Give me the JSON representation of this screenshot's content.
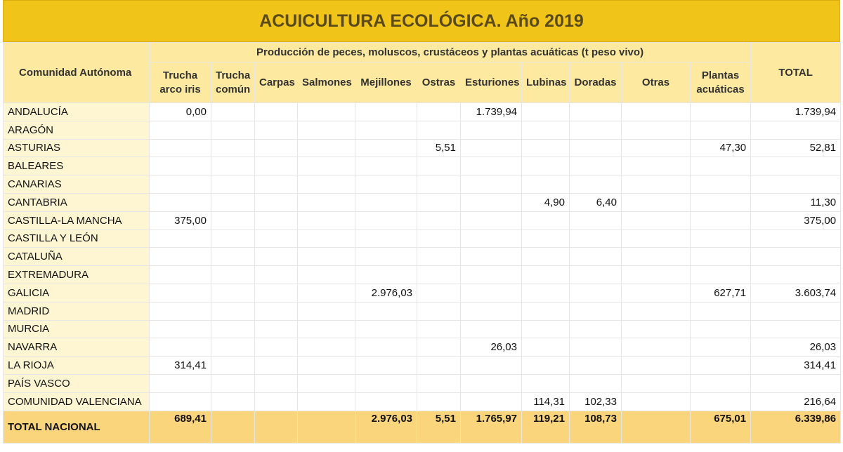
{
  "title": "ACUICULTURA ECOLÓGICA. Año 2019",
  "headers": {
    "region": "Comunidad Autónoma",
    "group": "Producción de peces, moluscos, crustáceos y plantas acuáticas (t peso vivo)",
    "total": "TOTAL",
    "columns": [
      "Trucha arco iris",
      "Trucha común",
      "Carpas",
      "Salmones",
      "Mejillones",
      "Ostras",
      "Esturiones",
      "Lubinas",
      "Doradas",
      "Otras",
      "Plantas acuáticas"
    ]
  },
  "rows": [
    {
      "region": "ANDALUCÍA",
      "values": [
        "0,00",
        "",
        "",
        "",
        "",
        "",
        "1.739,94",
        "",
        "",
        "",
        ""
      ],
      "total": "1.739,94"
    },
    {
      "region": "ARAGÓN",
      "values": [
        "",
        "",
        "",
        "",
        "",
        "",
        "",
        "",
        "",
        "",
        ""
      ],
      "total": ""
    },
    {
      "region": "ASTURIAS",
      "values": [
        "",
        "",
        "",
        "",
        "",
        "5,51",
        "",
        "",
        "",
        "",
        "47,30"
      ],
      "total": "52,81"
    },
    {
      "region": "BALEARES",
      "values": [
        "",
        "",
        "",
        "",
        "",
        "",
        "",
        "",
        "",
        "",
        ""
      ],
      "total": ""
    },
    {
      "region": "CANARIAS",
      "values": [
        "",
        "",
        "",
        "",
        "",
        "",
        "",
        "",
        "",
        "",
        ""
      ],
      "total": ""
    },
    {
      "region": "CANTABRIA",
      "values": [
        "",
        "",
        "",
        "",
        "",
        "",
        "",
        "4,90",
        "6,40",
        "",
        ""
      ],
      "total": "11,30"
    },
    {
      "region": "CASTILLA-LA MANCHA",
      "values": [
        "375,00",
        "",
        "",
        "",
        "",
        "",
        "",
        "",
        "",
        "",
        ""
      ],
      "total": "375,00"
    },
    {
      "region": "CASTILLA Y LEÓN",
      "values": [
        "",
        "",
        "",
        "",
        "",
        "",
        "",
        "",
        "",
        "",
        ""
      ],
      "total": ""
    },
    {
      "region": "CATALUÑA",
      "values": [
        "",
        "",
        "",
        "",
        "",
        "",
        "",
        "",
        "",
        "",
        ""
      ],
      "total": ""
    },
    {
      "region": "EXTREMADURA",
      "values": [
        "",
        "",
        "",
        "",
        "",
        "",
        "",
        "",
        "",
        "",
        ""
      ],
      "total": ""
    },
    {
      "region": "GALICIA",
      "values": [
        "",
        "",
        "",
        "",
        "2.976,03",
        "",
        "",
        "",
        "",
        "",
        "627,71"
      ],
      "total": "3.603,74"
    },
    {
      "region": "MADRID",
      "values": [
        "",
        "",
        "",
        "",
        "",
        "",
        "",
        "",
        "",
        "",
        ""
      ],
      "total": ""
    },
    {
      "region": "MURCIA",
      "values": [
        "",
        "",
        "",
        "",
        "",
        "",
        "",
        "",
        "",
        "",
        ""
      ],
      "total": ""
    },
    {
      "region": "NAVARRA",
      "values": [
        "",
        "",
        "",
        "",
        "",
        "",
        "26,03",
        "",
        "",
        "",
        ""
      ],
      "total": "26,03"
    },
    {
      "region": "LA RIOJA",
      "values": [
        "314,41",
        "",
        "",
        "",
        "",
        "",
        "",
        "",
        "",
        "",
        ""
      ],
      "total": "314,41"
    },
    {
      "region": "PAÍS VASCO",
      "values": [
        "",
        "",
        "",
        "",
        "",
        "",
        "",
        "",
        "",
        "",
        ""
      ],
      "total": ""
    },
    {
      "region": "COMUNIDAD VALENCIANA",
      "values": [
        "",
        "",
        "",
        "",
        "",
        "",
        "",
        "114,31",
        "102,33",
        "",
        ""
      ],
      "total": "216,64"
    }
  ],
  "total_row": {
    "region": "TOTAL NACIONAL",
    "values": [
      "689,41",
      "",
      "",
      "",
      "2.976,03",
      "5,51",
      "1.765,97",
      "119,21",
      "108,73",
      "",
      "675,01"
    ],
    "total": "6.339,86"
  }
}
